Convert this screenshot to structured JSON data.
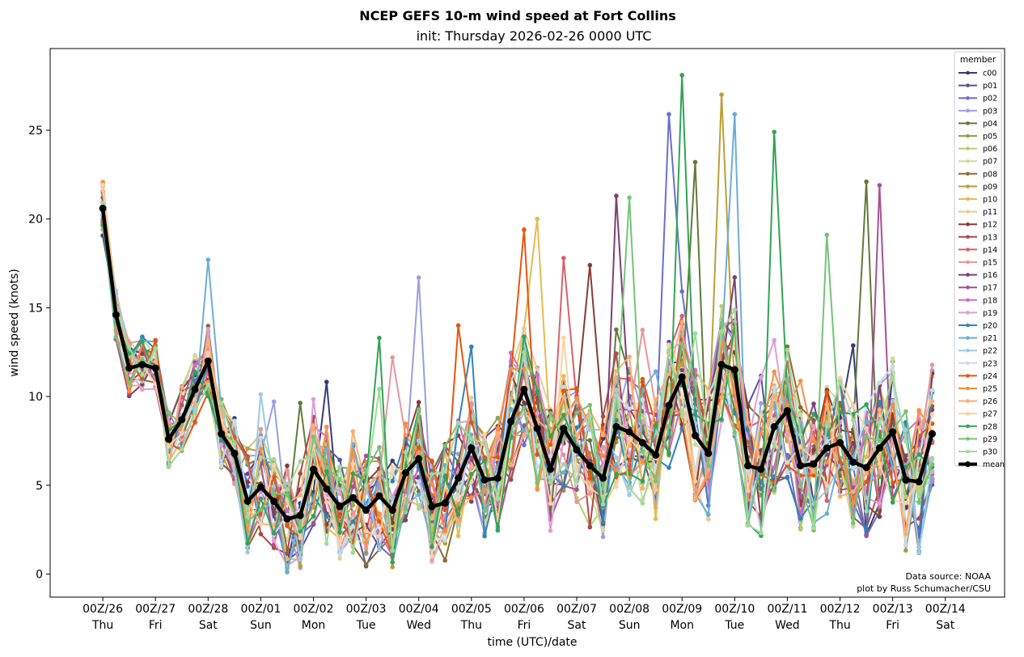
{
  "chart_data": {
    "type": "line",
    "title": "NCEP GEFS 10-m wind speed at Fort Collins",
    "subtitle": "init: Thursday 2026-02-26 0000 UTC",
    "xlabel": "time (UTC)/date",
    "ylabel": "wind speed (knots)",
    "ylim": [
      -1.3,
      29.6
    ],
    "yticks": [
      0,
      5,
      10,
      15,
      20,
      25
    ],
    "grid": false,
    "legend_title": "member",
    "legend_position": "top-right",
    "note_lines": [
      "Data source: NOAA",
      "plot by Russ Schumacher/CSU"
    ],
    "x_step_hours": 6,
    "xlim_steps": [
      -4,
      68.5
    ],
    "xtick_steps": [
      0,
      4,
      8,
      12,
      16,
      20,
      24,
      28,
      32,
      36,
      40,
      44,
      48,
      52,
      56,
      60,
      64
    ],
    "xtick_labels": [
      [
        "00Z/26",
        "Thu"
      ],
      [
        "00Z/27",
        "Fri"
      ],
      [
        "00Z/28",
        "Sat"
      ],
      [
        "00Z/01",
        "Sun"
      ],
      [
        "00Z/02",
        "Mon"
      ],
      [
        "00Z/03",
        "Tue"
      ],
      [
        "00Z/04",
        "Wed"
      ],
      [
        "00Z/05",
        "Thu"
      ],
      [
        "00Z/06",
        "Fri"
      ],
      [
        "00Z/07",
        "Sat"
      ],
      [
        "00Z/08",
        "Sun"
      ],
      [
        "00Z/09",
        "Mon"
      ],
      [
        "00Z/10",
        "Tue"
      ],
      [
        "00Z/11",
        "Wed"
      ],
      [
        "00Z/12",
        "Thu"
      ],
      [
        "00Z/13",
        "Fri"
      ],
      [
        "00Z/14",
        "Sat"
      ]
    ],
    "members": [
      "c00",
      "p01",
      "p02",
      "p03",
      "p04",
      "p05",
      "p06",
      "p07",
      "p08",
      "p09",
      "p10",
      "p11",
      "p12",
      "p13",
      "p14",
      "p15",
      "p16",
      "p17",
      "p18",
      "p19",
      "p20",
      "p21",
      "p22",
      "p23",
      "p24",
      "p25",
      "p26",
      "p27",
      "p28",
      "p29",
      "p30"
    ],
    "colors": [
      "#393b79",
      "#5254a3",
      "#6b6ecf",
      "#9c9ede",
      "#637939",
      "#8ca252",
      "#b5cf6b",
      "#cedb9c",
      "#8c6d31",
      "#bd9e39",
      "#e7ba52",
      "#e7cb94",
      "#843c39",
      "#ad494a",
      "#d6616b",
      "#e7969c",
      "#7b4173",
      "#a55194",
      "#ce6dbd",
      "#de9ed6",
      "#3182bd",
      "#6baed6",
      "#9ecae1",
      "#c6dbef",
      "#e6550d",
      "#fd8d3c",
      "#fdae6b",
      "#fdd0a2",
      "#31a354",
      "#74c476",
      "#a1d99b"
    ],
    "mean_label": "mean",
    "mean_color": "#000000",
    "mean": [
      20.6,
      14.6,
      11.6,
      11.8,
      11.6,
      7.6,
      8.7,
      10.4,
      12,
      7.9,
      6.8,
      4.1,
      4.9,
      4.1,
      3.1,
      3.3,
      5.9,
      4.8,
      3.8,
      4.3,
      3.6,
      4.4,
      3.6,
      5.7,
      6.5,
      3.8,
      4,
      5.4,
      7.1,
      5.3,
      5.4,
      8.6,
      10.4,
      8.2,
      5.9,
      8.2,
      7,
      6.1,
      5.4,
      8.3,
      8,
      7.4,
      6.7,
      9.5,
      11.1,
      7.8,
      6.8,
      11.8,
      11.5,
      6.1,
      5.9,
      8.3,
      9.2,
      6.1,
      6.2,
      7.1,
      7.4,
      6.3,
      6,
      7.1,
      8,
      5.3,
      5.2,
      7.9
    ],
    "peaks": [
      {
        "member": "p28",
        "step": 44,
        "value": 28.1
      },
      {
        "member": "p09",
        "step": 47,
        "value": 27
      },
      {
        "member": "p02",
        "step": 43,
        "value": 25.9
      },
      {
        "member": "p21",
        "step": 48,
        "value": 25.9
      },
      {
        "member": "p28",
        "step": 51,
        "value": 24.9
      },
      {
        "member": "p04",
        "step": 45,
        "value": 23.2
      },
      {
        "member": "p04",
        "step": 58,
        "value": 22.1
      },
      {
        "member": "p17",
        "step": 59,
        "value": 21.9
      },
      {
        "member": "p16",
        "step": 39,
        "value": 21.3
      },
      {
        "member": "p29",
        "step": 40,
        "value": 21.2
      },
      {
        "member": "p10",
        "step": 33,
        "value": 20
      },
      {
        "member": "p24",
        "step": 32,
        "value": 19.4
      },
      {
        "member": "p29",
        "step": 55,
        "value": 19.1
      },
      {
        "member": "p03",
        "step": 24,
        "value": 16.7
      },
      {
        "member": "p12",
        "step": 37,
        "value": 17.4
      },
      {
        "member": "p14",
        "step": 35,
        "value": 17.8
      },
      {
        "member": "p21",
        "step": 8,
        "value": 17.7
      },
      {
        "member": "p24",
        "step": 27,
        "value": 14
      },
      {
        "member": "p28",
        "step": 21,
        "value": 13.3
      },
      {
        "member": "p20",
        "step": 28,
        "value": 12.8
      },
      {
        "member": "p15",
        "step": 22,
        "value": 12.2
      }
    ]
  }
}
